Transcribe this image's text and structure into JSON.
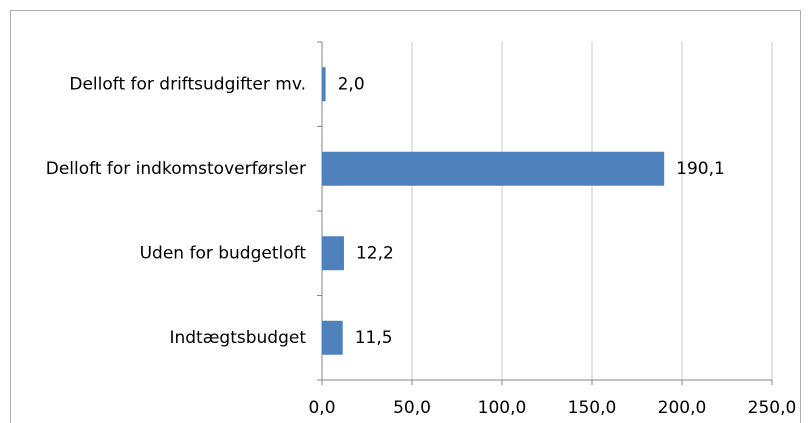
{
  "chart_data": {
    "type": "barh",
    "categories": [
      "Delloft for driftsudgifter mv.",
      "Delloft for indkomstoverførsler",
      "Uden for budgetloft",
      "Indtægtsbudget"
    ],
    "values": [
      2.0,
      190.1,
      12.2,
      11.5
    ],
    "value_labels": [
      "2,0",
      "190,1",
      "12,2",
      "11,5"
    ],
    "color": "#4f81bd",
    "xlim": [
      0,
      250
    ],
    "xticks": [
      {
        "value": 0,
        "label": "0,0"
      },
      {
        "value": 50,
        "label": "50,0"
      },
      {
        "value": 100,
        "label": "100,0"
      },
      {
        "value": 150,
        "label": "150,0"
      },
      {
        "value": 200,
        "label": "200,0"
      },
      {
        "value": 250,
        "label": "250,0"
      }
    ],
    "grid": true
  }
}
